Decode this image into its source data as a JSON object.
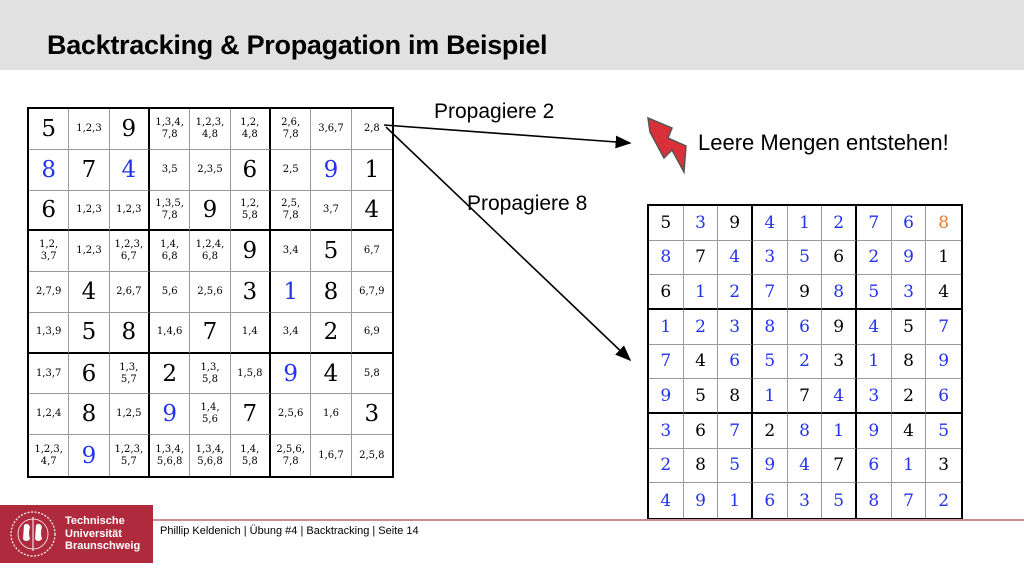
{
  "title": "Backtracking & Propagation im Beispiel",
  "labels": {
    "propagate2": "Propagiere 2",
    "propagate8": "Propagiere 8",
    "empty_sets": "Leere Mengen entstehen!"
  },
  "icons": {
    "conflict": "lightning-bolt-icon"
  },
  "colors": {
    "given": "#000000",
    "filled": "#2233ee",
    "conflict": "#e87a2a",
    "brand": "#b02a3e"
  },
  "left_grid": {
    "cells": [
      [
        "5",
        "1,2,3",
        "9",
        "1,3,4,\n7,8",
        "1,2,3,\n4,8",
        "1,2,\n4,8",
        "2,6,\n7,8",
        "3,6,7",
        "2,8"
      ],
      [
        "8",
        "7",
        "4",
        "3,5",
        "2,3,5",
        "6",
        "2,5",
        "9",
        "1"
      ],
      [
        "6",
        "1,2,3",
        "1,2,3",
        "1,3,5,\n7,8",
        "9",
        "1,2,\n5,8",
        "2,5,\n7,8",
        "3,7",
        "4"
      ],
      [
        "1,2,\n3,7",
        "1,2,3",
        "1,2,3,\n6,7",
        "1,4,\n6,8",
        "1,2,4,\n6,8",
        "9",
        "3,4",
        "5",
        "6,7"
      ],
      [
        "2,7,9",
        "4",
        "2,6,7",
        "5,6",
        "2,5,6",
        "3",
        "1",
        "8",
        "6,7,9"
      ],
      [
        "1,3,9",
        "5",
        "8",
        "1,4,6",
        "7",
        "1,4",
        "3,4",
        "2",
        "6,9"
      ],
      [
        "1,3,7",
        "6",
        "1,3,\n5,7",
        "2",
        "1,3,\n5,8",
        "1,5,8",
        "9",
        "4",
        "5,8"
      ],
      [
        "1,2,4",
        "8",
        "1,2,5",
        "9",
        "1,4,\n5,6",
        "7",
        "2,5,6",
        "1,6",
        "3"
      ],
      [
        "1,2,3,\n4,7",
        "9",
        "1,2,3,\n5,7",
        "1,3,4,\n5,6,8",
        "1,3,4,\n5,6,8",
        "1,4,\n5,8",
        "2,5,6,\n7,8",
        "1,6,7",
        "2,5,8"
      ]
    ],
    "color_codes": [
      "kkkkkkkkk",
      "bkbkkkkbk",
      "kkkkkkkkk",
      "kkkkkkkkk",
      "kkkkkkbkk",
      "kkkkkkkkk",
      "kkkkkkbkk",
      "kkkbkkkkk",
      "kbkkkkkkk"
    ]
  },
  "right_grid": {
    "cells": [
      [
        "5",
        "3",
        "9",
        "4",
        "1",
        "2",
        "7",
        "6",
        "8"
      ],
      [
        "8",
        "7",
        "4",
        "3",
        "5",
        "6",
        "2",
        "9",
        "1"
      ],
      [
        "6",
        "1",
        "2",
        "7",
        "9",
        "8",
        "5",
        "3",
        "4"
      ],
      [
        "1",
        "2",
        "3",
        "8",
        "6",
        "9",
        "4",
        "5",
        "7"
      ],
      [
        "7",
        "4",
        "6",
        "5",
        "2",
        "3",
        "1",
        "8",
        "9"
      ],
      [
        "9",
        "5",
        "8",
        "1",
        "7",
        "4",
        "3",
        "2",
        "6"
      ],
      [
        "3",
        "6",
        "7",
        "2",
        "8",
        "1",
        "9",
        "4",
        "5"
      ],
      [
        "2",
        "8",
        "5",
        "9",
        "4",
        "7",
        "6",
        "1",
        "3"
      ],
      [
        "4",
        "9",
        "1",
        "6",
        "3",
        "5",
        "8",
        "7",
        "2"
      ]
    ],
    "color_codes": [
      "kbkbbbbbo",
      "bkbbbkbbk",
      "kbbbkbbbk",
      "bbbbbkbkb",
      "bkbbbkbkb",
      "bkkbkbbkb",
      "bkbkbbbkb",
      "bkbbbkbbk",
      "bbbbbbbbb"
    ]
  },
  "footer": {
    "logo_lines": [
      "Technische",
      "Universität",
      "Braunschweig"
    ],
    "text": "Phillip Keldenich | Übung #4 | Backtracking | Seite 14"
  }
}
